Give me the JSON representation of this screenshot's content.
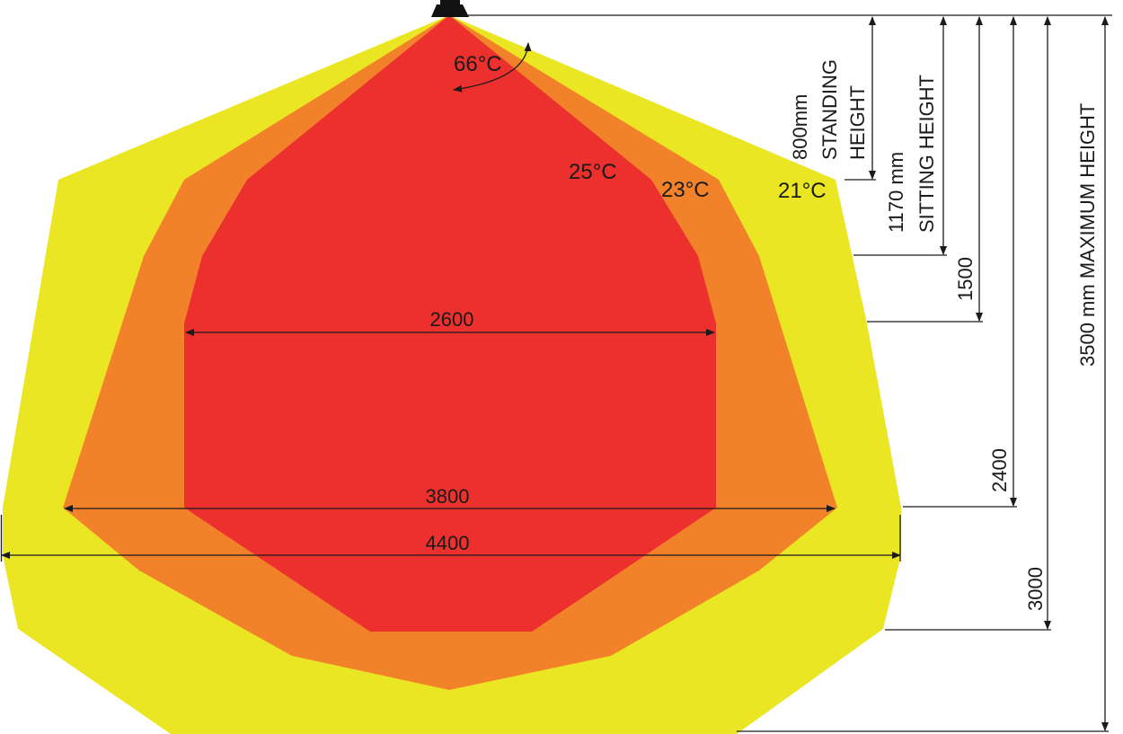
{
  "colors": {
    "zone_21": "#eae623",
    "zone_23": "#f2822a",
    "zone_25": "#ec302d",
    "line": "#1a1a1a"
  },
  "heater": {
    "beam_angle": "66°C",
    "icon": "heater-icon"
  },
  "zones": [
    {
      "temp": "21°C"
    },
    {
      "temp": "23°C"
    },
    {
      "temp": "25°C"
    }
  ],
  "widths": {
    "w2600": "2600",
    "w3800": "3800",
    "w4400": "4400"
  },
  "heights": {
    "standing": {
      "value": "800mm",
      "line1": "STANDING",
      "line2": "HEIGHT"
    },
    "sitting": {
      "value": "1170 mm",
      "line1": "SITTING HEIGHT"
    },
    "h1500": "1500",
    "h2400": "2400",
    "h3000": "3000",
    "maximum": "3500 mm MAXIMUM HEIGHT"
  }
}
